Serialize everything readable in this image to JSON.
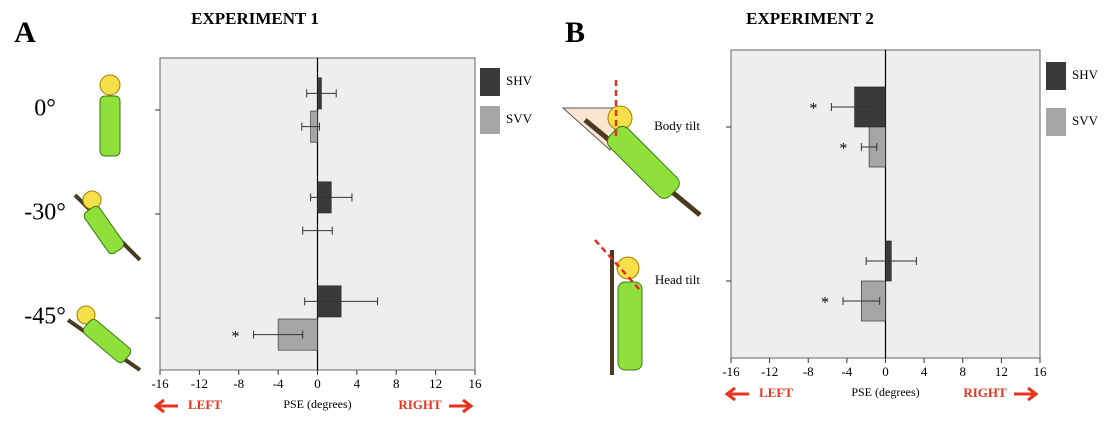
{
  "chart_data": [
    {
      "type": "barh",
      "panel": "A",
      "title": "EXPERIMENT 1",
      "categories": [
        "0°",
        "-30°",
        "-45°"
      ],
      "series": [
        {
          "name": "SHV",
          "color": "#3a3a3a",
          "values": [
            0.4,
            1.4,
            2.4
          ],
          "errors": [
            1.5,
            2.1,
            3.7
          ],
          "significant": [
            false,
            false,
            false
          ]
        },
        {
          "name": "SVV",
          "color": "#a6a6a6",
          "values": [
            -0.7,
            0,
            -4
          ],
          "errors": [
            0.9,
            1.5,
            2.5
          ],
          "significant": [
            false,
            false,
            true
          ]
        }
      ],
      "significance_label": "*",
      "xlim": [
        -16,
        16
      ],
      "xticks": [
        -16,
        -12,
        -8,
        -4,
        0,
        4,
        8,
        12,
        16
      ],
      "xlabel": "PSE (degrees)",
      "left_label": "LEFT",
      "right_label": "RIGHT"
    },
    {
      "type": "barh",
      "panel": "B",
      "title": "EXPERIMENT 2",
      "categories": [
        "Body tilt",
        "Head tilt"
      ],
      "series": [
        {
          "name": "SHV",
          "color": "#3a3a3a",
          "values": [
            -3.2,
            0.6
          ],
          "errors": [
            2.4,
            2.6
          ],
          "significant": [
            true,
            false
          ]
        },
        {
          "name": "SVV",
          "color": "#a6a6a6",
          "values": [
            -1.7,
            -2.5
          ],
          "errors": [
            0.8,
            1.9
          ],
          "significant": [
            true,
            true
          ]
        }
      ],
      "significance_label": "*",
      "xlim": [
        -16,
        16
      ],
      "xticks": [
        -16,
        -12,
        -8,
        -4,
        0,
        4,
        8,
        12,
        16
      ],
      "xlabel": "PSE (degrees)",
      "left_label": "LEFT",
      "right_label": "RIGHT"
    }
  ]
}
